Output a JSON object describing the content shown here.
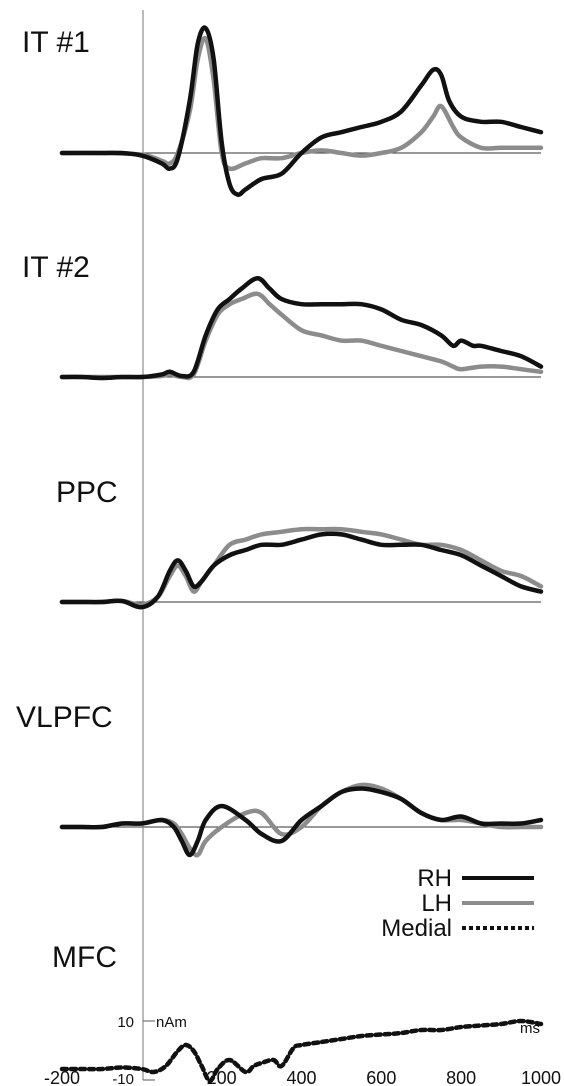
{
  "colors": {
    "RH": "#111111",
    "LH": "#8c8c8c",
    "Medial": "#111111"
  },
  "chart_data": {
    "type": "line",
    "x_unit": "ms",
    "y_unit": "nAm",
    "xlim": [
      -200,
      1000
    ],
    "x_ticks": [
      -200,
      200,
      400,
      600,
      800,
      1000
    ],
    "scale_bar": {
      "labels": [
        "10",
        "-10"
      ],
      "unit": "nAm"
    },
    "legend": {
      "placement": "bottom-right",
      "entries": [
        {
          "name": "RH",
          "style": "solid-black"
        },
        {
          "name": "LH",
          "style": "solid-gray"
        },
        {
          "name": "Medial",
          "style": "dotted-black"
        }
      ]
    },
    "panels": [
      {
        "label": "IT #1",
        "series": [
          {
            "name": "RH",
            "x": [
              -200,
              -150,
              -100,
              -50,
              0,
              50,
              70,
              90,
              120,
              140,
              160,
              180,
              200,
              220,
              240,
              260,
              300,
              350,
              400,
              450,
              500,
              550,
              600,
              650,
              700,
              730,
              750,
              770,
              800,
              850,
              900,
              950,
              1000
            ],
            "y": [
              0,
              0,
              0,
              0,
              -0.5,
              -2,
              -3,
              -1,
              10,
              21,
              24,
              18,
              2,
              -6,
              -8,
              -7,
              -5,
              -4,
              0,
              3,
              4,
              5,
              6,
              8,
              13,
              16,
              15,
              10,
              7,
              6,
              6,
              5,
              4
            ]
          },
          {
            "name": "LH",
            "x": [
              -200,
              -100,
              0,
              50,
              70,
              90,
              120,
              140,
              160,
              180,
              200,
              220,
              260,
              300,
              350,
              400,
              450,
              500,
              550,
              600,
              650,
              700,
              730,
              750,
              780,
              800,
              850,
              900,
              950,
              1000
            ],
            "y": [
              0,
              0,
              -0.3,
              -1.5,
              -2,
              0,
              8,
              18,
              22,
              14,
              0,
              -3,
              -2,
              -1,
              -1,
              0,
              0.5,
              0,
              -0.5,
              0,
              1,
              4,
              7,
              9,
              5,
              3,
              1,
              1,
              1,
              1
            ]
          }
        ]
      },
      {
        "label": "IT #2",
        "series": [
          {
            "name": "RH",
            "x": [
              -200,
              -150,
              -100,
              -50,
              0,
              50,
              70,
              100,
              130,
              160,
              190,
              220,
              250,
              290,
              320,
              350,
              400,
              450,
              500,
              550,
              600,
              650,
              700,
              750,
              780,
              800,
              830,
              850,
              900,
              950,
              1000
            ],
            "y": [
              0,
              0,
              -0.2,
              0,
              0,
              0.5,
              1,
              0.2,
              1,
              8,
              13,
              15,
              17,
              19,
              17,
              15,
              14,
              14,
              14,
              14,
              13,
              11,
              10,
              8,
              6,
              7,
              6,
              6,
              5,
              4,
              2
            ]
          },
          {
            "name": "LH",
            "x": [
              -200,
              -100,
              0,
              50,
              70,
              100,
              130,
              160,
              190,
              220,
              250,
              290,
              320,
              350,
              400,
              450,
              500,
              550,
              600,
              650,
              700,
              750,
              780,
              800,
              850,
              900,
              950,
              1000
            ],
            "y": [
              0,
              0,
              0,
              0.2,
              0.5,
              0,
              0.5,
              7,
              12,
              14,
              15,
              16,
              14,
              12,
              9,
              8,
              7,
              7,
              6,
              5,
              4,
              3,
              2,
              1.5,
              2,
              2,
              1.5,
              1
            ]
          }
        ]
      },
      {
        "label": "PPC",
        "series": [
          {
            "name": "RH",
            "x": [
              -200,
              -150,
              -100,
              -50,
              0,
              40,
              70,
              90,
              110,
              130,
              150,
              180,
              220,
              260,
              300,
              350,
              400,
              450,
              500,
              550,
              600,
              650,
              700,
              750,
              800,
              850,
              900,
              950,
              1000
            ],
            "y": [
              0,
              0,
              0,
              0.2,
              -1,
              1,
              6,
              8,
              6,
              3,
              4,
              7,
              9,
              10,
              11,
              11,
              12,
              13,
              13,
              12,
              11,
              11,
              11,
              10,
              9,
              7,
              5,
              3,
              2
            ]
          },
          {
            "name": "LH",
            "x": [
              -200,
              -150,
              -100,
              -50,
              0,
              40,
              70,
              90,
              110,
              130,
              150,
              180,
              220,
              260,
              300,
              350,
              400,
              450,
              500,
              550,
              600,
              650,
              700,
              750,
              800,
              850,
              900,
              950,
              1000
            ],
            "y": [
              0,
              0,
              0,
              0.2,
              -0.5,
              1,
              5,
              7,
              5,
              2,
              4,
              7,
              11,
              12,
              13,
              13.5,
              14,
              14,
              14,
              13.5,
              13,
              12,
              11,
              11,
              10,
              8,
              6,
              5,
              3
            ]
          }
        ]
      },
      {
        "label": "VLPFC",
        "series": [
          {
            "name": "RH",
            "x": [
              -200,
              -150,
              -100,
              -50,
              0,
              50,
              80,
              100,
              120,
              140,
              160,
              200,
              260,
              300,
              350,
              400,
              450,
              500,
              550,
              600,
              650,
              700,
              750,
              800,
              850,
              900,
              950,
              1000
            ],
            "y": [
              0,
              0,
              0,
              0.5,
              0.5,
              1,
              0,
              -2,
              -4,
              -2,
              1,
              3,
              1,
              -1,
              -2,
              1,
              3,
              5,
              5.5,
              5,
              4,
              2,
              1,
              1.5,
              0.5,
              0.5,
              0.5,
              1
            ]
          },
          {
            "name": "LH",
            "x": [
              -200,
              -150,
              -100,
              -50,
              0,
              50,
              80,
              100,
              120,
              140,
              160,
              200,
              260,
              300,
              350,
              400,
              450,
              500,
              550,
              600,
              650,
              700,
              750,
              800,
              850,
              900,
              950,
              1000
            ],
            "y": [
              0,
              0,
              0,
              0.5,
              0.5,
              1,
              0.5,
              -1,
              -3,
              -4,
              -2,
              0,
              2,
              2,
              -1,
              0,
              3,
              5,
              6,
              5.5,
              4,
              2,
              1,
              1,
              0.5,
              0,
              0,
              0
            ]
          }
        ]
      },
      {
        "label": "MFC",
        "series": [
          {
            "name": "Medial",
            "x": [
              -200,
              -150,
              -100,
              -50,
              0,
              30,
              60,
              90,
              110,
              130,
              150,
              170,
              190,
              220,
              260,
              280,
              300,
              330,
              350,
              380,
              400,
              450,
              500,
              550,
              600,
              650,
              700,
              750,
              800,
              850,
              900,
              950,
              1000
            ],
            "y": [
              -6,
              -6,
              -6,
              -5.5,
              -6,
              -7,
              -5,
              0,
              2,
              0,
              -5,
              -10,
              -6,
              -3,
              -7,
              -5,
              -4,
              -3,
              -5,
              1,
              2,
              3,
              4,
              5,
              5.5,
              6,
              7,
              7,
              8,
              8.5,
              9,
              10,
              9
            ]
          }
        ]
      }
    ]
  }
}
